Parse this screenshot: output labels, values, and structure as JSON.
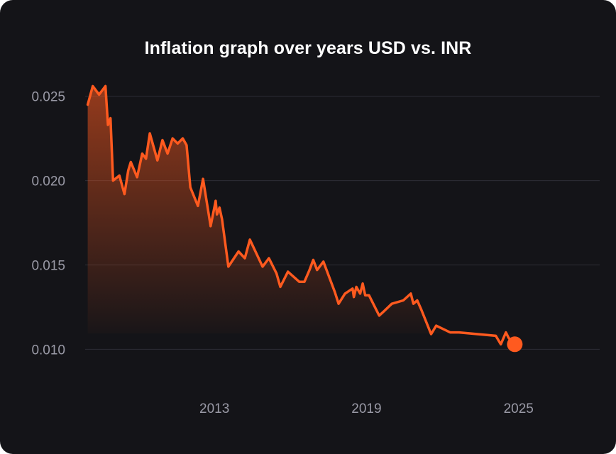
{
  "chart_data": {
    "type": "area",
    "title": "Inflation graph over years USD vs. INR",
    "xlabel": "",
    "ylabel": "",
    "xlim": [
      2007.9,
      2028.2
    ],
    "ylim": [
      0.008,
      0.0265
    ],
    "y_ticks": [
      0.025,
      0.02,
      0.015,
      0.01
    ],
    "y_tick_labels": [
      "0.025",
      "0.020",
      "0.015",
      "0.010"
    ],
    "x_ticks": [
      2013,
      2019,
      2025
    ],
    "x_tick_labels": [
      "2013",
      "2019",
      "2025"
    ],
    "grid": "horizontal",
    "legend": "none",
    "colors": {
      "background": "#141418",
      "line": "#ff5a1f",
      "fill": "#ff5a1f",
      "grid": "#2e2e36",
      "ticks": "#9a9aa6",
      "title": "#ffffff"
    },
    "series": [
      {
        "x": [
          2008.0,
          2008.2,
          2008.45,
          2008.7,
          2008.8,
          2008.9,
          2009.0,
          2009.25,
          2009.45,
          2009.6,
          2009.7,
          2009.95,
          2010.15,
          2010.3,
          2010.45,
          2010.75,
          2010.95,
          2011.15,
          2011.35,
          2011.55,
          2011.75,
          2011.9,
          2012.05,
          2012.35,
          2012.55,
          2012.85,
          2013.05,
          2013.1,
          2013.2,
          2013.3,
          2013.55,
          2013.95,
          2014.2,
          2014.4,
          2014.9,
          2015.15,
          2015.45,
          2015.6,
          2015.9,
          2016.35,
          2016.55,
          2016.75,
          2016.9,
          2017.05,
          2017.3,
          2017.55,
          2017.75,
          2017.9,
          2018.15,
          2018.45,
          2018.5,
          2018.6,
          2018.75,
          2018.85,
          2018.95,
          2019.1,
          2019.5,
          2019.65,
          2020.0,
          2020.45,
          2020.75,
          2020.85,
          2021.0,
          2021.15,
          2021.55,
          2021.75,
          2022.3,
          2022.65,
          2024.1,
          2024.3,
          2024.5,
          2024.6,
          2024.7,
          2024.85
        ],
        "values": [
          0.0245,
          0.0256,
          0.0251,
          0.0256,
          0.0233,
          0.0237,
          0.02,
          0.0203,
          0.0192,
          0.0206,
          0.0211,
          0.0202,
          0.0216,
          0.0213,
          0.0228,
          0.0212,
          0.0224,
          0.0216,
          0.0225,
          0.0222,
          0.0225,
          0.0221,
          0.0196,
          0.0185,
          0.0201,
          0.0173,
          0.0188,
          0.018,
          0.0184,
          0.0177,
          0.0149,
          0.0158,
          0.0154,
          0.0165,
          0.0149,
          0.0154,
          0.0145,
          0.0137,
          0.0146,
          0.014,
          0.014,
          0.0147,
          0.0153,
          0.0147,
          0.0152,
          0.0142,
          0.0134,
          0.0127,
          0.0133,
          0.0136,
          0.0131,
          0.0137,
          0.0133,
          0.0139,
          0.0132,
          0.0132,
          0.012,
          0.0122,
          0.0127,
          0.0129,
          0.0133,
          0.0127,
          0.0129,
          0.0124,
          0.0109,
          0.0114,
          0.011,
          0.011,
          0.0108,
          0.0103,
          0.011,
          0.0107,
          0.0105,
          0.0103
        ]
      }
    ],
    "end_marker": {
      "x": 2024.85,
      "y": 0.0103
    }
  }
}
